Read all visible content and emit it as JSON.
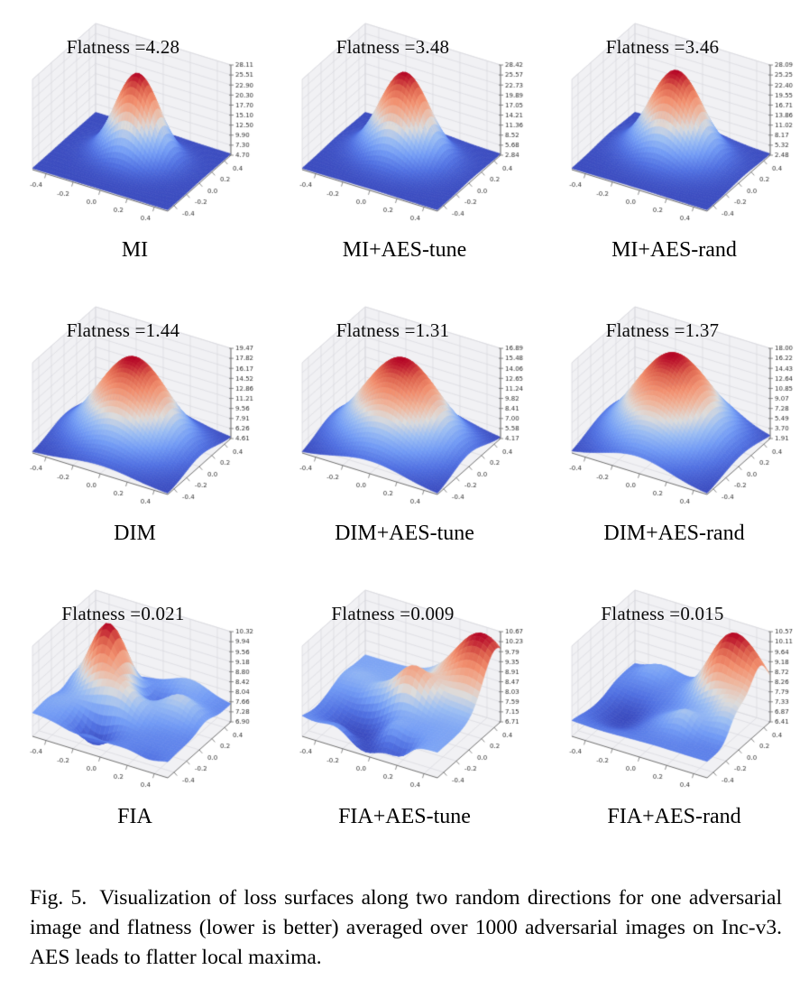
{
  "figure": {
    "caption_label": "Fig. 5.",
    "caption_text": "Visualization of loss surfaces along two random directions for one adversarial image and flatness (lower is better) averaged over 1000 adversarial images on Inc-v3. AES leads to flatter local maxima."
  },
  "colors": {
    "pane": "#f1f1f4",
    "grid": "#d9d9de",
    "axis": "#6e6e6e",
    "tick_label": "#2a2a2a",
    "colormap_low": "#3b4cc0",
    "colormap_mid": "#dddcdb",
    "colormap_high": "#b40426"
  },
  "chart_data": [
    {
      "type": "surface",
      "title": "MI",
      "flatness": 4.28,
      "flatness_label": "Flatness =4.28",
      "colormap": "coolwarm",
      "x_ticks": [
        "-0.4",
        "-0.2",
        "0.0",
        "0.2",
        "0.4"
      ],
      "y_ticks": [
        "-0.4",
        "-0.2",
        "0.0",
        "0.2",
        "0.4"
      ],
      "z_ticks": [
        "4.70",
        "7.30",
        "9.90",
        "12.50",
        "15.10",
        "17.70",
        "20.30",
        "22.90",
        "25.51",
        "28.11"
      ],
      "z_range": [
        4.7,
        28.11
      ],
      "xy_range": [
        -0.5,
        0.5
      ],
      "surface": {
        "kind": "peak",
        "sigma": 0.15,
        "offset": [
          0.02,
          0.05
        ]
      }
    },
    {
      "type": "surface",
      "title": "MI+AES-tune",
      "flatness": 3.48,
      "flatness_label": "Flatness =3.48",
      "colormap": "coolwarm",
      "x_ticks": [
        "-0.4",
        "-0.2",
        "0.0",
        "0.2",
        "0.4"
      ],
      "y_ticks": [
        "-0.4",
        "-0.2",
        "0.0",
        "0.2",
        "0.4"
      ],
      "z_ticks": [
        "2.84",
        "5.68",
        "8.52",
        "11.36",
        "14.21",
        "17.05",
        "19.89",
        "22.73",
        "25.57",
        "28.42"
      ],
      "z_range": [
        2.84,
        28.42
      ],
      "xy_range": [
        -0.5,
        0.5
      ],
      "surface": {
        "kind": "peak",
        "sigma": 0.17,
        "offset": [
          0.0,
          0.05
        ]
      }
    },
    {
      "type": "surface",
      "title": "MI+AES-rand",
      "flatness": 3.46,
      "flatness_label": "Flatness =3.46",
      "colormap": "coolwarm",
      "x_ticks": [
        "-0.4",
        "-0.2",
        "0.0",
        "0.2",
        "0.4"
      ],
      "y_ticks": [
        "-0.4",
        "-0.2",
        "0.0",
        "0.2",
        "0.4"
      ],
      "z_ticks": [
        "2.48",
        "5.32",
        "8.17",
        "11.02",
        "13.86",
        "16.71",
        "19.55",
        "22.40",
        "25.25",
        "28.09"
      ],
      "z_range": [
        2.48,
        28.09
      ],
      "xy_range": [
        -0.5,
        0.5
      ],
      "surface": {
        "kind": "peak",
        "sigma": 0.18,
        "offset": [
          0.0,
          0.08
        ]
      }
    },
    {
      "type": "surface",
      "title": "DIM",
      "flatness": 1.44,
      "flatness_label": "Flatness =1.44",
      "colormap": "coolwarm",
      "x_ticks": [
        "-0.4",
        "-0.2",
        "0.0",
        "0.2",
        "0.4"
      ],
      "y_ticks": [
        "-0.4",
        "-0.2",
        "0.0",
        "0.2",
        "0.4"
      ],
      "z_ticks": [
        "4.61",
        "6.26",
        "7.91",
        "9.56",
        "11.21",
        "12.86",
        "14.52",
        "16.17",
        "17.82",
        "19.47"
      ],
      "z_range": [
        4.61,
        19.47
      ],
      "xy_range": [
        -0.5,
        0.5
      ],
      "surface": {
        "kind": "peak",
        "sigma": 0.24,
        "offset": [
          0.0,
          0.02
        ]
      }
    },
    {
      "type": "surface",
      "title": "DIM+AES-tune",
      "flatness": 1.31,
      "flatness_label": "Flatness =1.31",
      "colormap": "coolwarm",
      "x_ticks": [
        "-0.4",
        "-0.2",
        "0.0",
        "0.2",
        "0.4"
      ],
      "y_ticks": [
        "-0.4",
        "-0.2",
        "0.0",
        "0.2",
        "0.4"
      ],
      "z_ticks": [
        "4.17",
        "5.58",
        "7.00",
        "8.41",
        "9.82",
        "11.24",
        "12.65",
        "14.06",
        "15.48",
        "16.89"
      ],
      "z_range": [
        4.17,
        16.89
      ],
      "xy_range": [
        -0.5,
        0.5
      ],
      "surface": {
        "kind": "peak",
        "sigma": 0.26,
        "offset": [
          0.0,
          0.0
        ]
      }
    },
    {
      "type": "surface",
      "title": "DIM+AES-rand",
      "flatness": 1.37,
      "flatness_label": "Flatness =1.37",
      "colormap": "coolwarm",
      "x_ticks": [
        "-0.4",
        "-0.2",
        "0.0",
        "0.2",
        "0.4"
      ],
      "y_ticks": [
        "-0.4",
        "-0.2",
        "0.0",
        "0.2",
        "0.4"
      ],
      "z_ticks": [
        "1.91",
        "3.70",
        "5.49",
        "7.28",
        "9.07",
        "10.85",
        "12.64",
        "14.43",
        "16.22",
        "18.00"
      ],
      "z_range": [
        1.91,
        18.0
      ],
      "xy_range": [
        -0.5,
        0.5
      ],
      "surface": {
        "kind": "peak",
        "sigma": 0.25,
        "offset": [
          -0.02,
          0.06
        ],
        "stretch": [
          1,
          1.25
        ]
      }
    },
    {
      "type": "surface",
      "title": "FIA",
      "flatness": 0.021,
      "flatness_label": "Flatness =0.021",
      "colormap": "coolwarm",
      "x_ticks": [
        "-0.4",
        "-0.2",
        "0.0",
        "0.2",
        "0.4"
      ],
      "y_ticks": [
        "-0.4",
        "-0.2",
        "0.0",
        "0.2",
        "0.4"
      ],
      "z_ticks": [
        "6.90",
        "7.28",
        "7.66",
        "8.04",
        "8.42",
        "8.80",
        "9.18",
        "9.56",
        "9.94",
        "10.32"
      ],
      "z_range": [
        6.9,
        10.32
      ],
      "xy_range": [
        -0.5,
        0.5
      ],
      "surface": {
        "kind": "rugged",
        "seed": 7,
        "hotspots": [
          [
            -0.25,
            0.18,
            0.13,
            1.3
          ],
          [
            0.0,
            -0.1,
            0.12,
            0.6
          ],
          [
            0.3,
            0.1,
            0.12,
            0.5
          ],
          [
            -0.1,
            -0.35,
            0.1,
            -0.4
          ]
        ]
      }
    },
    {
      "type": "surface",
      "title": "FIA+AES-tune",
      "flatness": 0.009,
      "flatness_label": "Flatness =0.009",
      "colormap": "coolwarm",
      "x_ticks": [
        "-0.4",
        "-0.2",
        "0.0",
        "0.2",
        "0.4"
      ],
      "y_ticks": [
        "-0.4",
        "-0.2",
        "0.0",
        "0.2",
        "0.4"
      ],
      "z_ticks": [
        "6.71",
        "7.15",
        "7.59",
        "8.03",
        "8.47",
        "8.91",
        "9.35",
        "9.79",
        "10.23",
        "10.67"
      ],
      "z_range": [
        6.71,
        10.67
      ],
      "xy_range": [
        -0.5,
        0.5
      ],
      "surface": {
        "kind": "rugged",
        "seed": 8,
        "hotspots": [
          [
            0.38,
            0.42,
            0.2,
            1.4
          ],
          [
            0.05,
            0.05,
            0.12,
            0.8
          ],
          [
            -0.2,
            -0.3,
            0.2,
            -0.6
          ]
        ]
      }
    },
    {
      "type": "surface",
      "title": "FIA+AES-rand",
      "flatness": 0.015,
      "flatness_label": "Flatness =0.015",
      "colormap": "coolwarm",
      "x_ticks": [
        "-0.4",
        "-0.2",
        "0.0",
        "0.2",
        "0.4"
      ],
      "y_ticks": [
        "-0.4",
        "-0.2",
        "0.0",
        "0.2",
        "0.4"
      ],
      "z_ticks": [
        "6.41",
        "6.87",
        "7.33",
        "7.79",
        "8.26",
        "8.72",
        "9.18",
        "9.64",
        "10.11",
        "10.57"
      ],
      "z_range": [
        6.41,
        10.57
      ],
      "xy_range": [
        -0.5,
        0.5
      ],
      "surface": {
        "kind": "rugged",
        "seed": 9,
        "hotspots": [
          [
            0.4,
            0.3,
            0.18,
            1.4
          ],
          [
            0.2,
            0.45,
            0.15,
            1.0
          ],
          [
            0.45,
            -0.05,
            0.12,
            0.6
          ],
          [
            -0.3,
            -0.2,
            0.15,
            -0.3
          ]
        ]
      }
    }
  ]
}
